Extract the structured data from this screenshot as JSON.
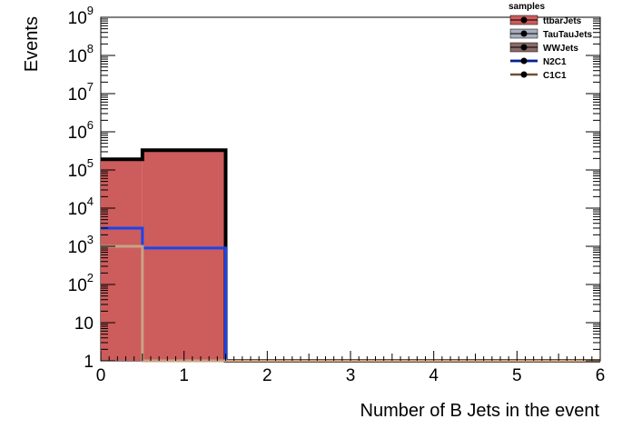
{
  "chart_data": {
    "type": "bar",
    "subtype": "stacked-histogram-with-overlays",
    "xlabel": "Number of B Jets in the event",
    "ylabel": "Events",
    "xlim": [
      0,
      6
    ],
    "ylim": [
      1,
      1000000000
    ],
    "yscale": "log",
    "bin_edges": [
      0,
      0.5,
      1.5,
      6
    ],
    "x_ticks": [
      "0",
      "1",
      "2",
      "3",
      "4",
      "5",
      "6"
    ],
    "y_ticks": [
      {
        "value": 1,
        "base": "1",
        "exp": ""
      },
      {
        "value": 10,
        "base": "10",
        "exp": ""
      },
      {
        "value": 100,
        "base": "10",
        "exp": "2"
      },
      {
        "value": 1000,
        "base": "10",
        "exp": "3"
      },
      {
        "value": 10000,
        "base": "10",
        "exp": "4"
      },
      {
        "value": 100000,
        "base": "10",
        "exp": "5"
      },
      {
        "value": 1000000,
        "base": "10",
        "exp": "6"
      },
      {
        "value": 10000000,
        "base": "10",
        "exp": "7"
      },
      {
        "value": 100000000,
        "base": "10",
        "exp": "8"
      },
      {
        "value": 1000000000,
        "base": "10",
        "exp": "9"
      }
    ],
    "legend_title": "samples",
    "legend_position": "top-right",
    "series": [
      {
        "name": "ttbarJets",
        "kind": "stacked",
        "values": [
          190000,
          330000,
          0.9
        ],
        "fill": "#cd5c5c",
        "line": "#cd5c5c"
      },
      {
        "name": "TauTauJets",
        "kind": "stacked",
        "values": [
          0,
          0,
          0
        ],
        "fill": "#a9aebd",
        "line": "#a9aebd"
      },
      {
        "name": "WWJets",
        "kind": "stacked",
        "values": [
          0,
          0,
          0
        ],
        "fill": "#8b6969",
        "line": "#8b6969"
      },
      {
        "name": "N2C1",
        "kind": "overlay",
        "values": [
          3000,
          900,
          0.9
        ],
        "fill": "none",
        "line": "#1a44ee"
      },
      {
        "name": "C1C1",
        "kind": "overlay",
        "values": [
          1000,
          0.95,
          0.95
        ],
        "fill": "none",
        "line": "#c8a383"
      }
    ],
    "stack_total_line": "#000000",
    "grid": false
  }
}
